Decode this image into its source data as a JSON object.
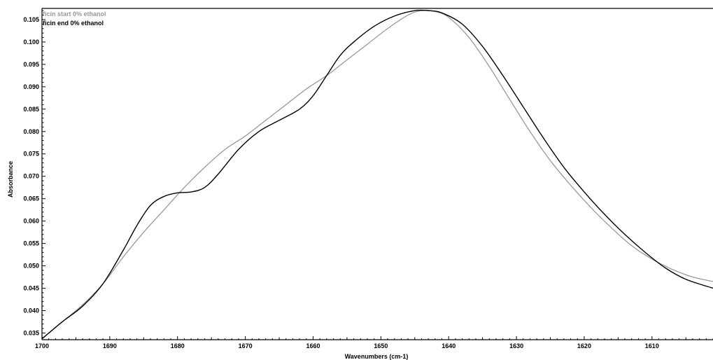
{
  "chart_data": {
    "type": "line",
    "xlabel": "Wavenumbers (cm-1)",
    "ylabel": "Absorbance",
    "xlim": [
      1700,
      1601
    ],
    "ylim": [
      0.0335,
      0.1075
    ],
    "x_reversed": true,
    "grid": false,
    "legend_position": "top-left",
    "xticks": [
      1700,
      1690,
      1680,
      1670,
      1660,
      1650,
      1640,
      1630,
      1620,
      1610
    ],
    "yticks": [
      0.035,
      0.04,
      0.045,
      0.05,
      0.055,
      0.06,
      0.065,
      0.07,
      0.075,
      0.08,
      0.085,
      0.09,
      0.095,
      0.1,
      0.105
    ],
    "series": [
      {
        "name": "ficin start 0% ethanol",
        "color": "#999999",
        "x": [
          1700,
          1697,
          1694,
          1691,
          1688,
          1685,
          1682,
          1679,
          1676,
          1673,
          1670,
          1667,
          1664,
          1661,
          1658,
          1655,
          1652,
          1649,
          1646,
          1644,
          1642,
          1640,
          1637,
          1634,
          1631,
          1628,
          1625,
          1622,
          1619,
          1616,
          1613,
          1610,
          1607,
          1604,
          1601
        ],
        "y": [
          0.0337,
          0.0375,
          0.0413,
          0.046,
          0.052,
          0.0575,
          0.0625,
          0.0675,
          0.072,
          0.076,
          0.079,
          0.0825,
          0.086,
          0.0895,
          0.0925,
          0.096,
          0.0995,
          0.103,
          0.106,
          0.107,
          0.1068,
          0.1055,
          0.101,
          0.0945,
          0.0872,
          0.08,
          0.0735,
          0.068,
          0.063,
          0.0585,
          0.0545,
          0.0515,
          0.0492,
          0.0475,
          0.0465
        ]
      },
      {
        "name": "ficin end 0% ethanol",
        "color": "#000000",
        "x": [
          1700,
          1697,
          1694,
          1691,
          1688,
          1686,
          1684,
          1682,
          1680,
          1678,
          1676,
          1674,
          1671,
          1668,
          1665,
          1662,
          1660,
          1658,
          1656,
          1654,
          1651,
          1648,
          1645,
          1643,
          1641,
          1638,
          1635,
          1632,
          1629,
          1626,
          1623,
          1620,
          1617,
          1614,
          1611,
          1608,
          1605,
          1601
        ],
        "y": [
          0.0337,
          0.0375,
          0.041,
          0.046,
          0.0535,
          0.059,
          0.0635,
          0.0655,
          0.0663,
          0.0665,
          0.0675,
          0.0705,
          0.076,
          0.08,
          0.0825,
          0.085,
          0.088,
          0.0925,
          0.097,
          0.1,
          0.1035,
          0.1058,
          0.107,
          0.107,
          0.1065,
          0.104,
          0.099,
          0.0925,
          0.0855,
          0.0785,
          0.072,
          0.0665,
          0.0615,
          0.057,
          0.053,
          0.0495,
          0.047,
          0.045
        ]
      }
    ]
  }
}
